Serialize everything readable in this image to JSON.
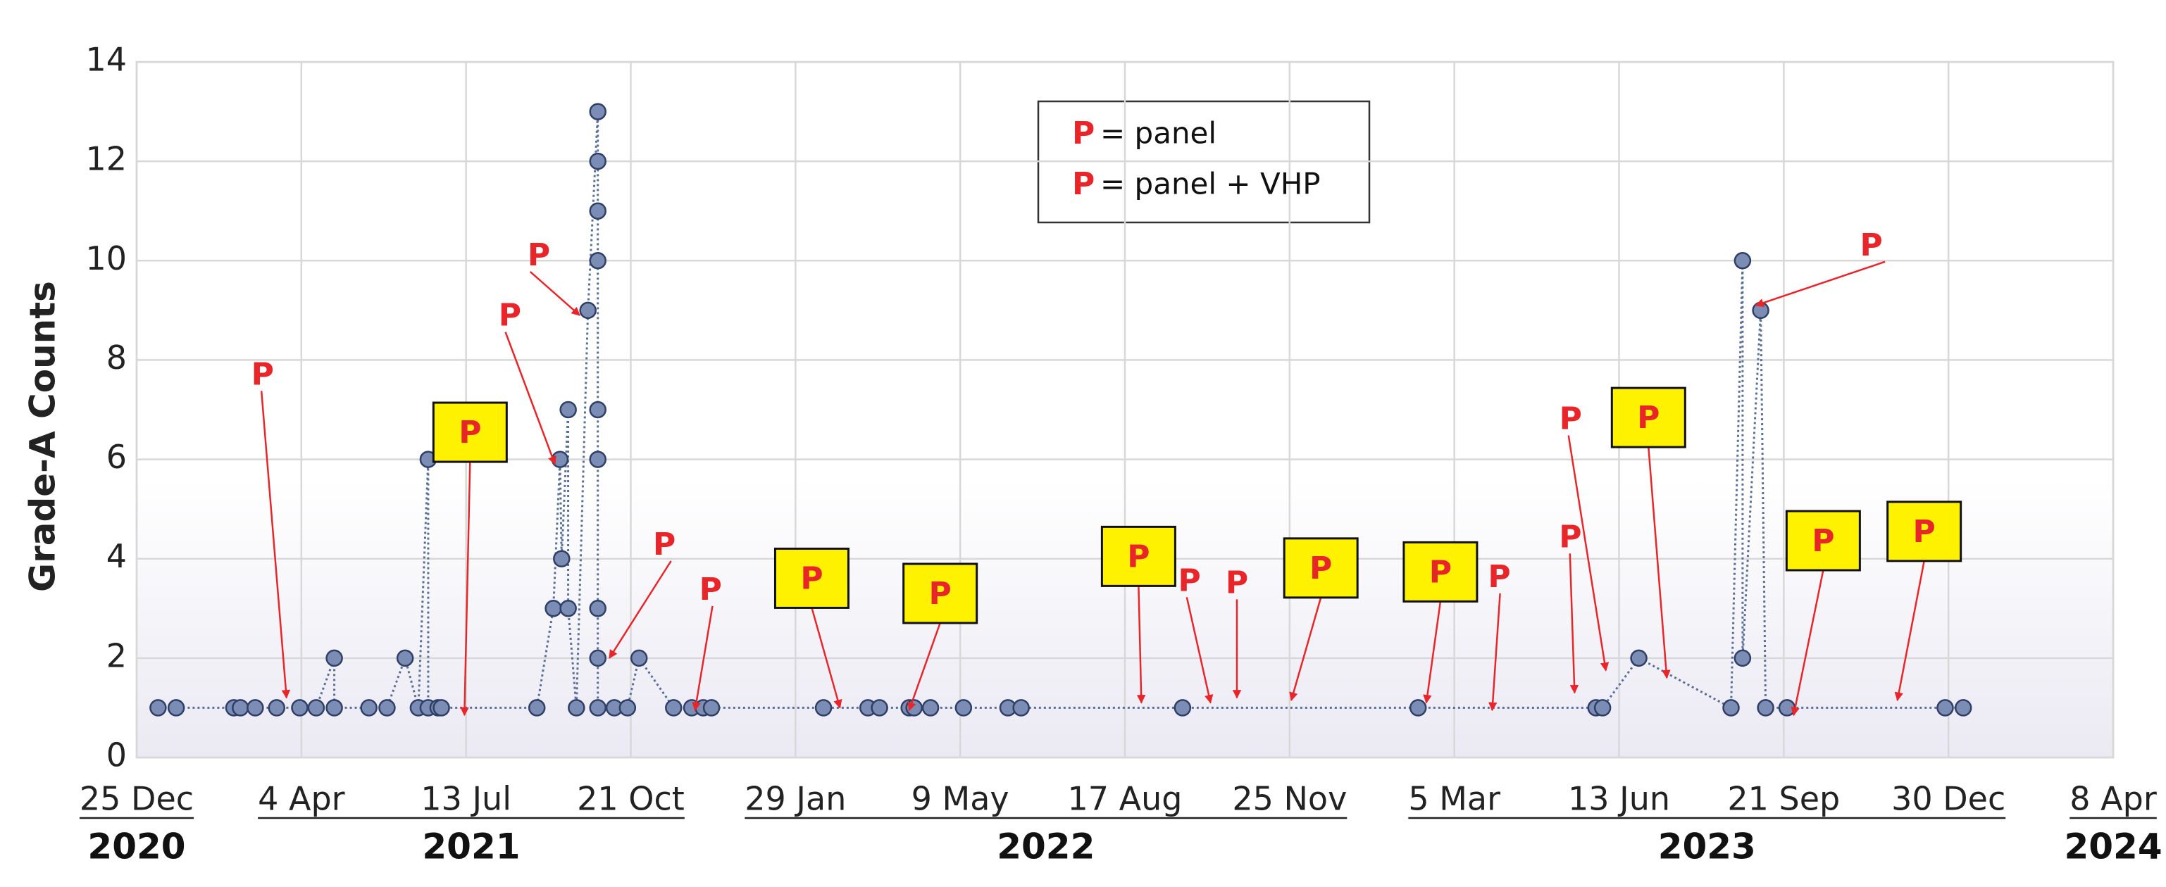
{
  "chart_data": {
    "type": "line",
    "y_label": "Grade-A Counts",
    "xlim": [
      "2020-12-25",
      "2024-04-08"
    ],
    "xticks": [
      {
        "value": "2020-12-25",
        "label": "25 Dec"
      },
      {
        "value": "2021-04-04",
        "label": "4 Apr"
      },
      {
        "value": "2021-07-13",
        "label": "13 Jul"
      },
      {
        "value": "2021-10-21",
        "label": "21 Oct"
      },
      {
        "value": "2022-01-29",
        "label": "29 Jan"
      },
      {
        "value": "2022-05-09",
        "label": "9 May"
      },
      {
        "value": "2022-08-17",
        "label": "17 Aug"
      },
      {
        "value": "2022-11-25",
        "label": "25 Nov"
      },
      {
        "value": "2023-03-05",
        "label": "5 Mar"
      },
      {
        "value": "2023-06-13",
        "label": "13 Jun"
      },
      {
        "value": "2023-09-21",
        "label": "21 Sep"
      },
      {
        "value": "2023-12-30",
        "label": "30 Dec"
      },
      {
        "value": "2024-04-08",
        "label": "8 Apr"
      }
    ],
    "year_labels": [
      "2020",
      "2021",
      "2022",
      "2023",
      "2024"
    ],
    "ylim": [
      0,
      14
    ],
    "yticks": [
      0,
      2,
      4,
      6,
      8,
      10,
      12,
      14
    ],
    "grid": true,
    "series": [
      {
        "color": "#5a6f96",
        "marker_color": "#7b8db5",
        "x": [
          "2021-01-07",
          "2021-01-18",
          "2021-02-22",
          "2021-02-26",
          "2021-03-07",
          "2021-03-20",
          "2021-04-03",
          "2021-04-13",
          "2021-04-24",
          "2021-04-24",
          "2021-05-15",
          "2021-05-26",
          "2021-06-06",
          "2021-06-14",
          "2021-06-20",
          "2021-06-20",
          "2021-06-26",
          "2021-06-28",
          "2021-08-25",
          "2021-09-04",
          "2021-09-08",
          "2021-09-09",
          "2021-09-13",
          "2021-09-13",
          "2021-09-18",
          "2021-09-25",
          "2021-10-01",
          "2021-10-01",
          "2021-10-01",
          "2021-10-01",
          "2021-10-01",
          "2021-10-01",
          "2021-10-01",
          "2021-10-01",
          "2021-10-01",
          "2021-10-11",
          "2021-10-19",
          "2021-10-26",
          "2021-11-16",
          "2021-11-27",
          "2021-12-04",
          "2021-12-09",
          "2022-02-15",
          "2022-03-14",
          "2022-03-21",
          "2022-04-08",
          "2022-04-11",
          "2022-04-21",
          "2022-05-11",
          "2022-06-07",
          "2022-06-15",
          "2022-09-21",
          "2023-02-11",
          "2023-05-30",
          "2023-06-03",
          "2023-06-25",
          "2023-08-20",
          "2023-08-27",
          "2023-08-27",
          "2023-09-07",
          "2023-09-10",
          "2023-09-23",
          "2023-12-28",
          "2024-01-08"
        ],
        "values": [
          1,
          1,
          1,
          1,
          1,
          1,
          1,
          1,
          2,
          1,
          1,
          1,
          2,
          1,
          6,
          1,
          1,
          1,
          1,
          3,
          6,
          4,
          7,
          3,
          1,
          9,
          13,
          12,
          11,
          10,
          7,
          6,
          3,
          2,
          1,
          1,
          1,
          2,
          1,
          1,
          1,
          1,
          1,
          1,
          1,
          1,
          1,
          1,
          1,
          1,
          1,
          1,
          1,
          1,
          1,
          2,
          1,
          10,
          2,
          9,
          1,
          1,
          1,
          1
        ]
      }
    ],
    "annotation_color": "#e8262a",
    "box_color": "#fff200",
    "legend": [
      {
        "marker": "P",
        "label": "= panel"
      },
      {
        "marker": "P",
        "label": "= panel + VHP"
      }
    ],
    "annotations": [
      {
        "text": "P",
        "boxed": false,
        "x": "2021-03-26",
        "y": 1.2
      },
      {
        "text": "P",
        "boxed": true,
        "x": "2021-07-12",
        "y": 0.85
      },
      {
        "text": "P",
        "boxed": false,
        "x": "2021-09-05",
        "y": 5.9
      },
      {
        "text": "P",
        "boxed": false,
        "x": "2021-09-20",
        "y": 8.9
      },
      {
        "text": "P",
        "boxed": false,
        "x": "2021-10-08",
        "y": 2
      },
      {
        "text": "P",
        "boxed": false,
        "x": "2021-11-29",
        "y": 0.95
      },
      {
        "text": "P",
        "boxed": true,
        "x": "2022-02-25",
        "y": 1
      },
      {
        "text": "P",
        "boxed": true,
        "x": "2022-04-08",
        "y": 0.95
      },
      {
        "text": "P",
        "boxed": true,
        "x": "2022-08-27",
        "y": 1.1
      },
      {
        "text": "P",
        "boxed": false,
        "x": "2022-10-08",
        "y": 1.1
      },
      {
        "text": "P",
        "boxed": false,
        "x": "2022-10-24",
        "y": 1.2
      },
      {
        "text": "P",
        "boxed": true,
        "x": "2022-11-26",
        "y": 1.15
      },
      {
        "text": "P",
        "boxed": true,
        "x": "2023-02-16",
        "y": 1.1
      },
      {
        "text": "P",
        "boxed": false,
        "x": "2023-03-28",
        "y": 0.95
      },
      {
        "text": "P",
        "boxed": false,
        "x": "2023-06-05",
        "y": 1.75
      },
      {
        "text": "P",
        "boxed": true,
        "x": "2023-07-12",
        "y": 1.6
      },
      {
        "text": "P",
        "boxed": false,
        "x": "2023-05-17",
        "y": 1.3
      },
      {
        "text": "P",
        "boxed": false,
        "x": "2023-09-04",
        "y": 9.1
      },
      {
        "text": "P",
        "boxed": true,
        "x": "2023-09-27",
        "y": 0.85
      },
      {
        "text": "P",
        "boxed": true,
        "x": "2023-11-29",
        "y": 1.15
      }
    ]
  }
}
